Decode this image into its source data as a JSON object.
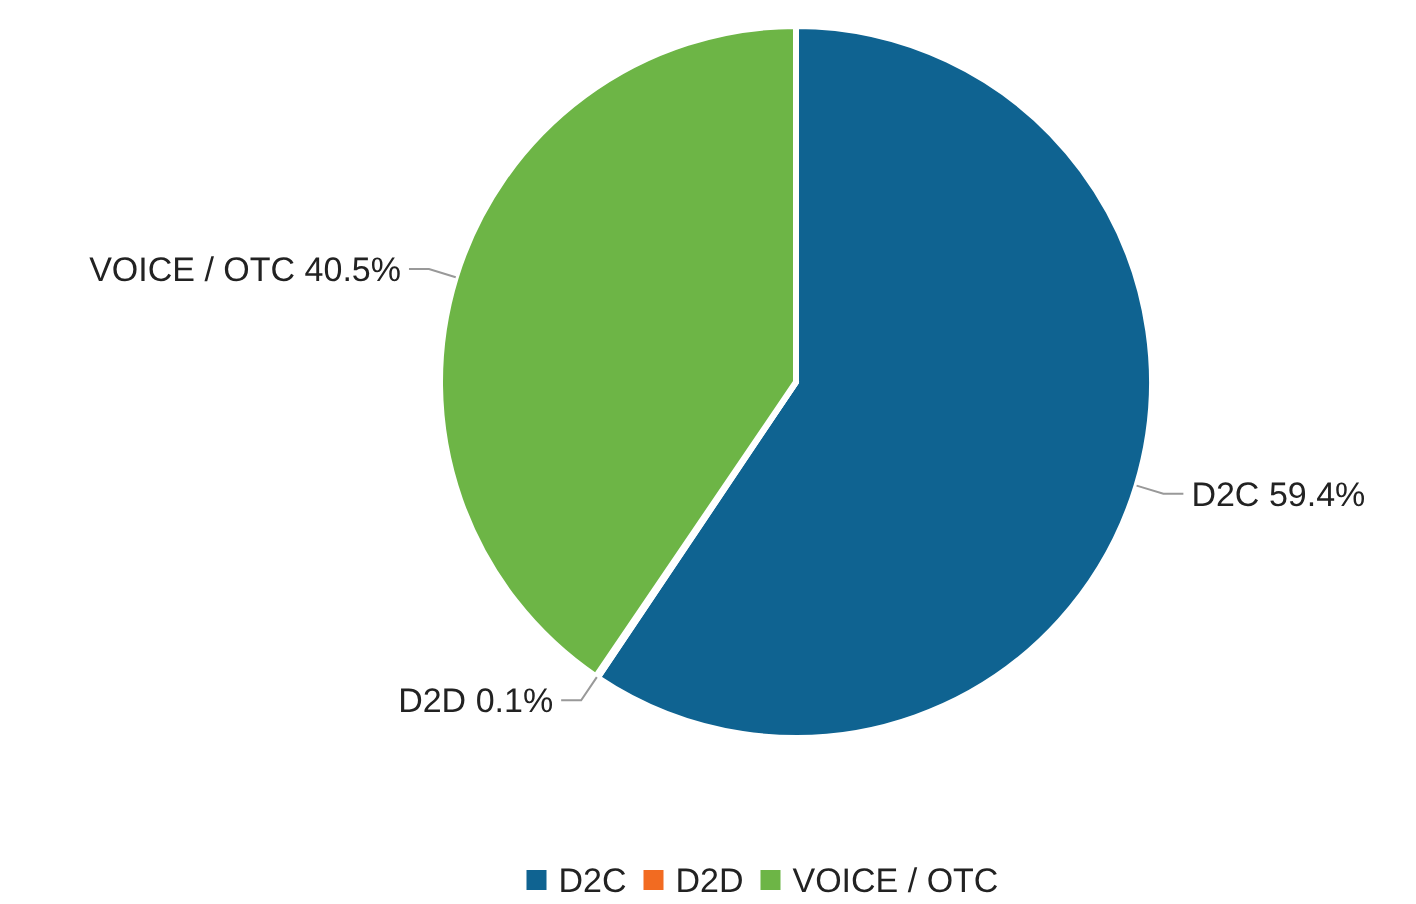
{
  "chart_data": {
    "type": "pie",
    "categories": [
      "D2C",
      "D2D",
      "VOICE / OTC"
    ],
    "values": [
      59.4,
      0.1,
      40.5
    ],
    "value_labels": [
      "59.4%",
      "0.1%",
      "40.5%"
    ],
    "colors": [
      "#0f6391",
      "#f26b21",
      "#6db546"
    ],
    "legend": "bottom"
  }
}
